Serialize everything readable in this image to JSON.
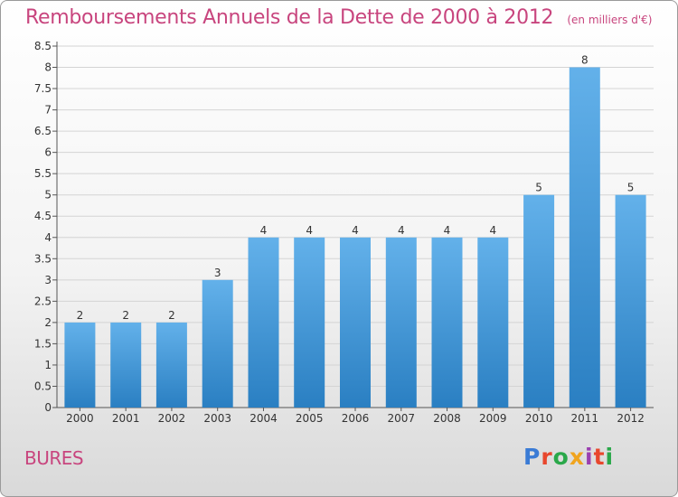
{
  "page": {
    "title": "Remboursements Annuels de la Dette de 2000 à 2012",
    "unit_note": "(en milliers d'€)",
    "commune": "BURES",
    "logo": {
      "text": "Proxiti",
      "colors": [
        "#3a7bd5",
        "#e8472d",
        "#2aa84a",
        "#f0a41e",
        "#9a3fb0",
        "#e8472d",
        "#2aa84a"
      ]
    }
  },
  "chart_data": {
    "type": "bar",
    "title": "Remboursements Annuels de la Dette de 2000 à 2012",
    "categories": [
      "2000",
      "2001",
      "2002",
      "2003",
      "2004",
      "2005",
      "2006",
      "2007",
      "2008",
      "2009",
      "2010",
      "2011",
      "2012"
    ],
    "values": [
      2,
      2,
      2,
      3,
      4,
      4,
      4,
      4,
      4,
      4,
      5,
      8,
      5
    ],
    "value_labels": [
      "2",
      "2",
      "2",
      "3",
      "4",
      "4",
      "4",
      "4",
      "4",
      "4",
      "5",
      "8",
      "5"
    ],
    "ylim": [
      0,
      8.5
    ],
    "yticks": [
      "0",
      "0.5",
      "1",
      "1.5",
      "2",
      "2.5",
      "3",
      "3.5",
      "4",
      "4.5",
      "5",
      "5.5",
      "6",
      "6.5",
      "7",
      "7.5",
      "8",
      "8.5"
    ],
    "grid": true,
    "bar_color_top": "#63b1ea",
    "bar_color_bottom": "#2a7fc2"
  }
}
